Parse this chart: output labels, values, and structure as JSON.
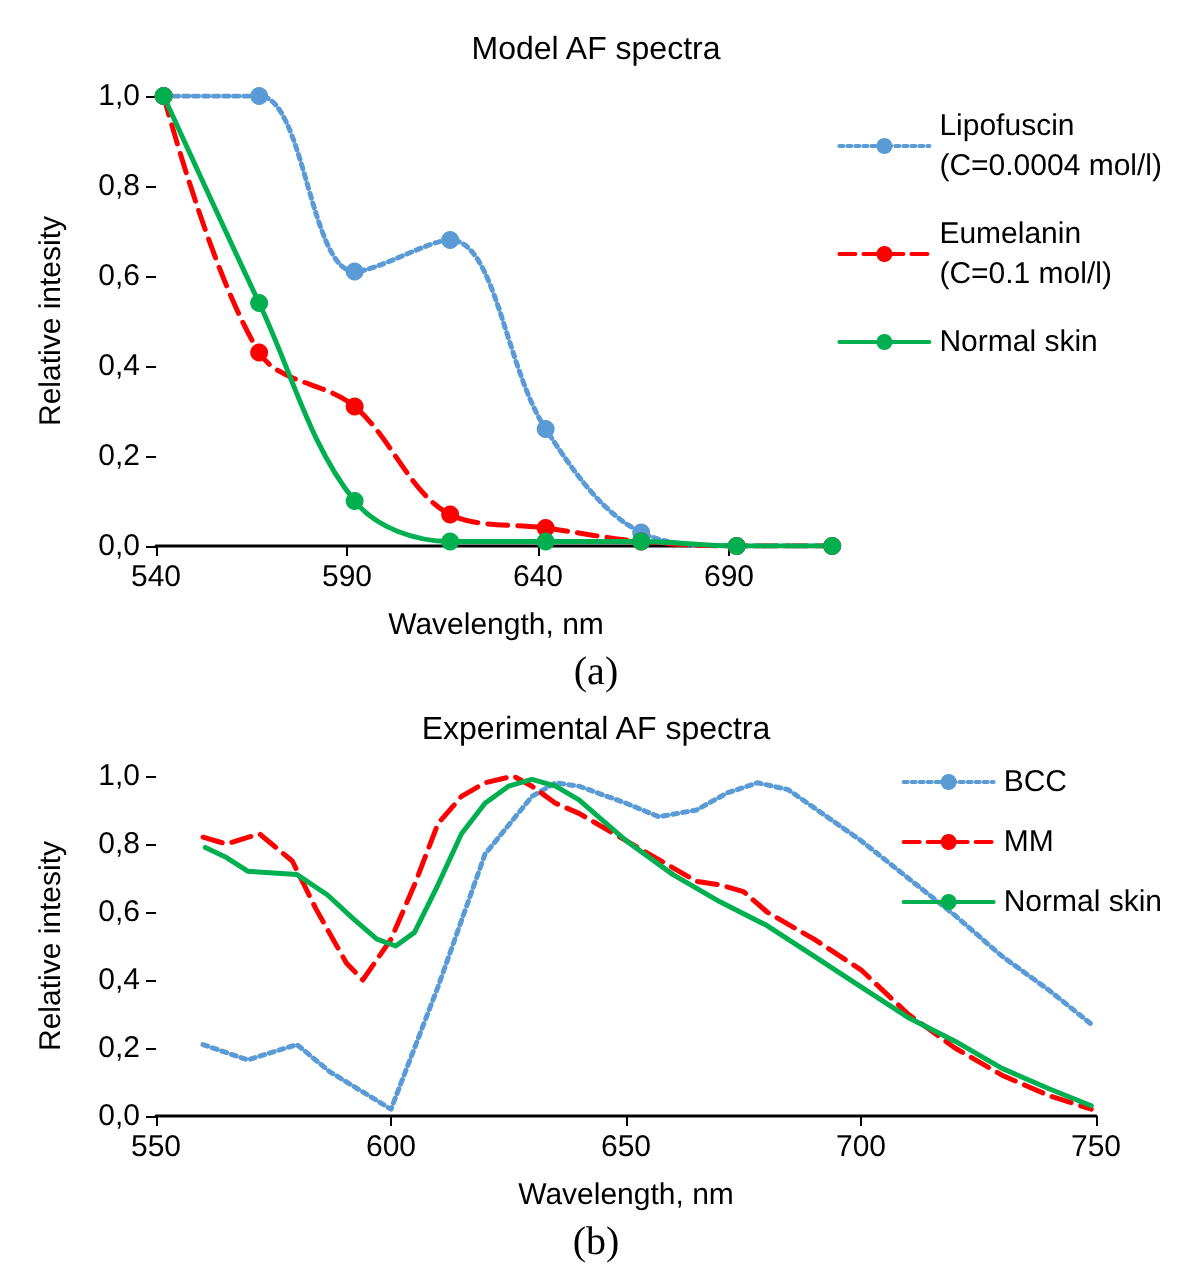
{
  "chart_data": [
    {
      "type": "line",
      "title": "Model AF spectra",
      "xlabel": "Wavelength, nm",
      "ylabel": "Relative intesity",
      "annotations": [
        "(a)"
      ],
      "x": [
        542,
        567,
        592,
        617,
        642,
        667,
        692,
        717
      ],
      "xlim": [
        540,
        718
      ],
      "xticks": [
        540,
        590,
        640,
        690
      ],
      "ylim": [
        0,
        1
      ],
      "yticks": [
        {
          "value": 0,
          "label": "0,0"
        },
        {
          "value": 0.2,
          "label": "0,2"
        },
        {
          "value": 0.4,
          "label": "0,4"
        },
        {
          "value": 0.6,
          "label": "0,6"
        },
        {
          "value": 0.8,
          "label": "0,8"
        },
        {
          "value": 1,
          "label": "1,0"
        }
      ],
      "grid": false,
      "legend": "right",
      "marker": "circle",
      "series": [
        {
          "name": "Lipofuscin\n(C=0.0004 mol/l)",
          "color": "#5b9bd5",
          "line_style": "dotted",
          "values": [
            1.0,
            1.0,
            0.61,
            0.68,
            0.26,
            0.03,
            0.0,
            0.0
          ]
        },
        {
          "name": "Eumelanin\n(C=0.1 mol/l)",
          "color": "#ff0000",
          "line_style": "dashed",
          "values": [
            1.0,
            0.43,
            0.31,
            0.07,
            0.04,
            0.01,
            0.0,
            0.0
          ]
        },
        {
          "name": "Normal skin",
          "color": "#00b050",
          "line_style": "solid",
          "values": [
            1.0,
            0.54,
            0.1,
            0.01,
            0.01,
            0.01,
            0.0,
            0.0
          ]
        }
      ]
    },
    {
      "type": "line",
      "title": "Experimental AF spectra",
      "xlabel": "Wavelength, nm",
      "ylabel": "Relative intesity",
      "annotations": [
        "(b)"
      ],
      "xlim": [
        550,
        750
      ],
      "xticks": [
        550,
        600,
        650,
        700,
        750
      ],
      "ylim": [
        0,
        1
      ],
      "yticks": [
        {
          "value": 0,
          "label": "0,0"
        },
        {
          "value": 0.2,
          "label": "0,2"
        },
        {
          "value": 0.4,
          "label": "0,4"
        },
        {
          "value": 0.6,
          "label": "0,6"
        },
        {
          "value": 0.8,
          "label": "0,8"
        },
        {
          "value": 1,
          "label": "1,0"
        }
      ],
      "grid": false,
      "legend": "top right",
      "marker": "none",
      "series": [
        {
          "name": "BCC",
          "color": "#5b9bd5",
          "line_style": "dotted",
          "x": [
            560,
            569.5,
            580,
            587,
            600,
            610,
            620,
            630,
            635,
            640,
            650,
            657,
            665,
            671.5,
            678,
            684.5,
            700,
            710,
            720,
            730,
            740,
            749
          ],
          "values": [
            0.21,
            0.165,
            0.21,
            0.13,
            0.02,
            0.38,
            0.77,
            0.94,
            0.98,
            0.97,
            0.92,
            0.88,
            0.9,
            0.95,
            0.98,
            0.96,
            0.81,
            0.7,
            0.59,
            0.47,
            0.37,
            0.27
          ]
        },
        {
          "name": "MM",
          "color": "#ff0000",
          "line_style": "dashed",
          "x": [
            560,
            565,
            572,
            579,
            584,
            590.5,
            594,
            600,
            605,
            610,
            615,
            620,
            626,
            630,
            635,
            640,
            650,
            660,
            665,
            670,
            675,
            680,
            690,
            700,
            710,
            720,
            730,
            740,
            749
          ],
          "values": [
            0.82,
            0.8,
            0.83,
            0.75,
            0.61,
            0.45,
            0.4,
            0.52,
            0.68,
            0.86,
            0.94,
            0.98,
            1.0,
            0.97,
            0.92,
            0.89,
            0.81,
            0.73,
            0.69,
            0.68,
            0.66,
            0.6,
            0.52,
            0.43,
            0.3,
            0.2,
            0.12,
            0.06,
            0.02
          ]
        },
        {
          "name": "Normal skin",
          "color": "#00b050",
          "line_style": "solid",
          "x": [
            560.5,
            565,
            569.5,
            580,
            586.5,
            592,
            597,
            601,
            605,
            610,
            615,
            620,
            625,
            630,
            635,
            640,
            650,
            660,
            670,
            680,
            690,
            700,
            710,
            720,
            730,
            740,
            749
          ],
          "values": [
            0.79,
            0.76,
            0.72,
            0.71,
            0.65,
            0.58,
            0.52,
            0.5,
            0.54,
            0.68,
            0.83,
            0.92,
            0.97,
            0.99,
            0.97,
            0.93,
            0.81,
            0.71,
            0.63,
            0.56,
            0.47,
            0.38,
            0.29,
            0.22,
            0.14,
            0.08,
            0.03
          ]
        }
      ]
    }
  ]
}
